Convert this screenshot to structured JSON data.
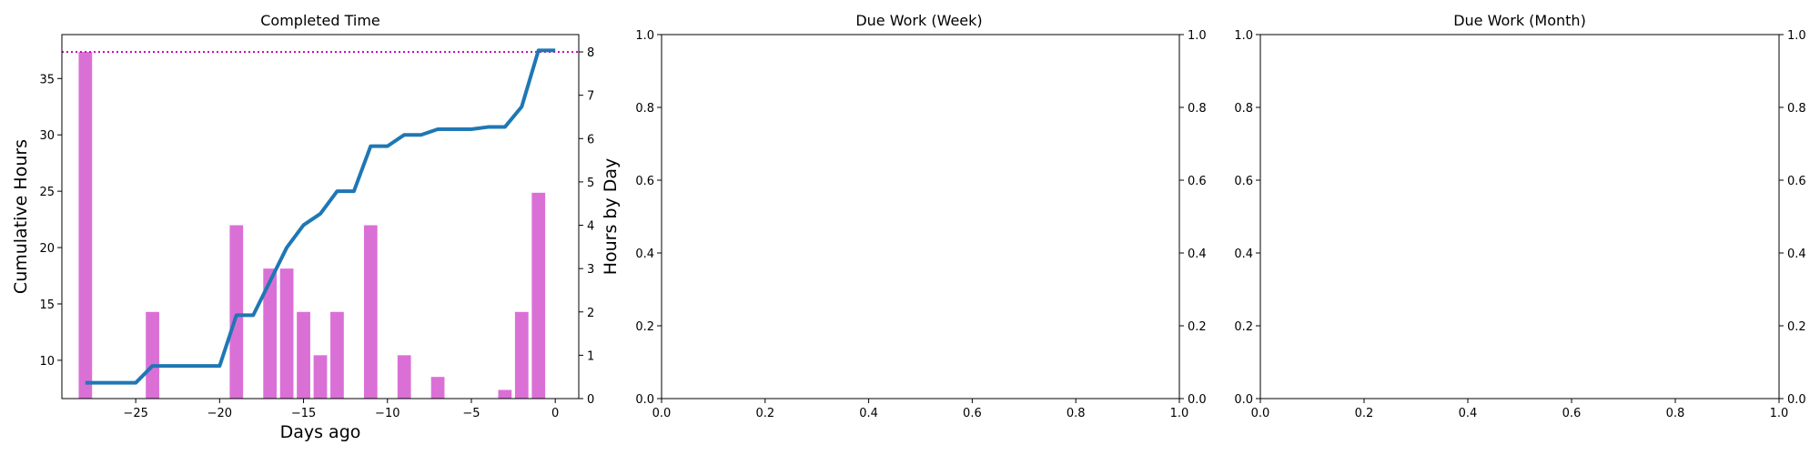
{
  "colors": {
    "bar": "#da70d6",
    "line": "#1f77b4",
    "target_line": "#bf00bf",
    "axis": "#000000",
    "background": "#ffffff"
  },
  "chart_data": [
    {
      "type": "bar+line",
      "title": "Completed Time",
      "xlabel": "Days ago",
      "ylabel": "Cumulative Hours",
      "y2label": "Hours by Day",
      "xlim": [
        -29.4,
        1.4
      ],
      "ylim": [
        6.6,
        38.9
      ],
      "y2lim": [
        0,
        8.4
      ],
      "xticks": [
        -25,
        -20,
        -15,
        -10,
        -5,
        0
      ],
      "xtick_labels": [
        "−25",
        "−20",
        "−15",
        "−10",
        "−5",
        "0"
      ],
      "yticks": [
        10,
        15,
        20,
        25,
        30,
        35
      ],
      "yticks2": [
        0,
        1,
        2,
        3,
        4,
        5,
        6,
        7,
        8
      ],
      "grid": false,
      "target_line": {
        "axis": "y2",
        "value": 8,
        "style": "dotted"
      },
      "series": [
        {
          "kind": "bar",
          "axis": "y2",
          "x": [
            -28,
            -24,
            -19,
            -17,
            -16,
            -15,
            -14,
            -13,
            -11,
            -9,
            -7,
            -3,
            -2,
            -1
          ],
          "values": [
            8,
            2,
            4,
            3,
            3,
            2,
            1,
            2,
            4,
            1,
            0.5,
            0.2,
            2,
            4.75
          ]
        },
        {
          "kind": "line",
          "axis": "y",
          "x": [
            -28,
            -27,
            -26,
            -25,
            -24,
            -23,
            -22,
            -21,
            -20,
            -19,
            -18,
            -17,
            -16,
            -15,
            -14,
            -13,
            -12,
            -11,
            -10,
            -9,
            -8,
            -7,
            -6,
            -5,
            -4,
            -3,
            -2,
            -1,
            0
          ],
          "values": [
            8,
            8,
            8,
            8,
            9.5,
            9.5,
            9.5,
            9.5,
            9.5,
            14,
            14,
            17,
            20,
            22,
            23,
            25,
            25,
            29,
            29,
            30,
            30,
            30.5,
            30.5,
            30.5,
            30.7,
            30.7,
            32.5,
            37.5,
            37.5
          ]
        }
      ]
    },
    {
      "type": "empty",
      "title": "Due Work (Week)",
      "xlim": [
        0,
        1
      ],
      "ylim": [
        0,
        1
      ],
      "y2lim": [
        0,
        1
      ],
      "ticks": [
        "0.0",
        "0.2",
        "0.4",
        "0.6",
        "0.8",
        "1.0"
      ],
      "grid": false
    },
    {
      "type": "empty",
      "title": "Due Work (Month)",
      "xlim": [
        0,
        1
      ],
      "ylim": [
        0,
        1
      ],
      "y2lim": [
        0,
        1
      ],
      "ticks": [
        "0.0",
        "0.2",
        "0.4",
        "0.6",
        "0.8",
        "1.0"
      ],
      "grid": false
    }
  ]
}
